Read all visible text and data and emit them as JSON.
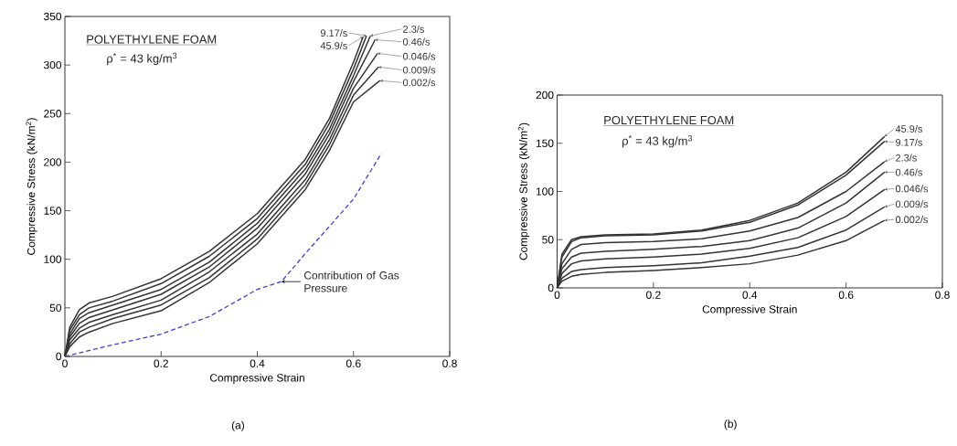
{
  "chart_data": [
    {
      "type": "line",
      "title": "POLYETHYLENE FOAM",
      "subtitle": "ρ$^{*}$ = 43 kg/m$^{3}$",
      "xlabel": "Compressive Strain",
      "ylabel": "Compressive Stress (kN/m$^{2}$)",
      "xlim": [
        0,
        0.8
      ],
      "ylim": [
        0,
        350
      ],
      "xticks": [
        0,
        0.2,
        0.4,
        0.6,
        0.8
      ],
      "yticks": [
        0,
        50,
        100,
        150,
        200,
        250,
        300,
        350
      ],
      "series": [
        {
          "name": "45.9/s",
          "color": "#333333",
          "x": [
            0,
            0.01,
            0.03,
            0.05,
            0.1,
            0.2,
            0.3,
            0.4,
            0.5,
            0.55,
            0.6,
            0.62
          ],
          "values": [
            0,
            30,
            48,
            55,
            62,
            80,
            108,
            147,
            203,
            245,
            303,
            329
          ]
        },
        {
          "name": "9.17/s",
          "color": "#333333",
          "x": [
            0,
            0.01,
            0.03,
            0.05,
            0.1,
            0.2,
            0.3,
            0.4,
            0.5,
            0.55,
            0.6,
            0.627
          ],
          "values": [
            0,
            27,
            43,
            50,
            57,
            75,
            103,
            142,
            198,
            240,
            296,
            330
          ]
        },
        {
          "name": "2.3/s",
          "color": "#333333",
          "x": [
            0,
            0.01,
            0.03,
            0.05,
            0.1,
            0.2,
            0.3,
            0.4,
            0.5,
            0.55,
            0.6,
            0.635
          ],
          "values": [
            0,
            23,
            39,
            45,
            53,
            69,
            97,
            137,
            193,
            234,
            289,
            330
          ]
        },
        {
          "name": "0.46/s",
          "color": "#333333",
          "x": [
            0,
            0.01,
            0.03,
            0.05,
            0.1,
            0.2,
            0.3,
            0.4,
            0.5,
            0.55,
            0.6,
            0.645
          ],
          "values": [
            0,
            20,
            34,
            40,
            48,
            64,
            92,
            132,
            188,
            229,
            283,
            326
          ]
        },
        {
          "name": "0.046/s",
          "color": "#333333",
          "x": [
            0,
            0.01,
            0.03,
            0.05,
            0.1,
            0.2,
            0.3,
            0.4,
            0.5,
            0.55,
            0.6,
            0.65
          ],
          "values": [
            0,
            17,
            29,
            35,
            43,
            58,
            87,
            126,
            182,
            223,
            276,
            312
          ]
        },
        {
          "name": "0.009/s",
          "color": "#333333",
          "x": [
            0,
            0.01,
            0.03,
            0.05,
            0.1,
            0.2,
            0.3,
            0.4,
            0.5,
            0.55,
            0.6,
            0.652
          ],
          "values": [
            0,
            13,
            25,
            30,
            39,
            53,
            81,
            121,
            177,
            218,
            269,
            298
          ]
        },
        {
          "name": "0.002/s",
          "color": "#333333",
          "x": [
            0,
            0.01,
            0.03,
            0.05,
            0.1,
            0.2,
            0.3,
            0.4,
            0.5,
            0.55,
            0.6,
            0.655
          ],
          "values": [
            0,
            10,
            20,
            25,
            34,
            47,
            76,
            116,
            172,
            212,
            262,
            284
          ]
        },
        {
          "color": "#4040d0",
          "line_style": "dashed",
          "x": [
            0,
            0.1,
            0.2,
            0.3,
            0.4,
            0.45,
            0.5,
            0.6,
            0.658
          ],
          "values": [
            0,
            12,
            23,
            41,
            69,
            77,
            106,
            162,
            209
          ]
        }
      ],
      "annotations": [
        {
          "text": "Contribution of Gas Pressure",
          "x": 0.45,
          "y": 77
        },
        "(a)"
      ]
    },
    {
      "type": "line",
      "title": "POLYETHYLENE FOAM",
      "subtitle": "ρ$^{*}$ = 43 kg/m$^{3}$",
      "xlabel": "Compressive Strain",
      "ylabel": "Compressive Stress (kN/m$^{2}$)",
      "xlim": [
        0,
        0.8
      ],
      "ylim": [
        0,
        200
      ],
      "xticks": [
        0,
        0.2,
        0.4,
        0.6,
        0.8
      ],
      "yticks": [
        0,
        50,
        100,
        150,
        200
      ],
      "x": [
        0,
        0.01,
        0.03,
        0.05,
        0.1,
        0.2,
        0.3,
        0.4,
        0.5,
        0.6,
        0.68
      ],
      "series": [
        {
          "name": "45.9/s",
          "color": "#333333",
          "values": [
            0,
            35,
            50,
            53,
            55,
            56,
            60,
            70,
            88,
            120,
            157
          ]
        },
        {
          "name": "9.17/s",
          "color": "#333333",
          "values": [
            0,
            32,
            48,
            52,
            54,
            55,
            59,
            68,
            86,
            117,
            152
          ]
        },
        {
          "name": "2.3/s",
          "color": "#333333",
          "values": [
            0,
            25,
            40,
            45,
            47,
            48,
            51,
            59,
            73,
            100,
            131
          ]
        },
        {
          "name": "0.46/s",
          "color": "#333333",
          "values": [
            0,
            20,
            32,
            36,
            38,
            40,
            43,
            49,
            62,
            88,
            120
          ]
        },
        {
          "name": "0.046/s",
          "color": "#333333",
          "values": [
            0,
            15,
            25,
            28,
            30,
            32,
            35,
            41,
            52,
            74,
            102
          ]
        },
        {
          "name": "0.009/s",
          "color": "#333333",
          "values": [
            0,
            10,
            17,
            19,
            21,
            23,
            26,
            33,
            42,
            60,
            84
          ]
        },
        {
          "name": "0.002/s",
          "color": "#333333",
          "values": [
            0,
            7,
            12,
            14,
            16,
            18,
            21,
            25,
            34,
            49,
            70
          ]
        }
      ],
      "annotations": [
        "(b)"
      ]
    }
  ]
}
